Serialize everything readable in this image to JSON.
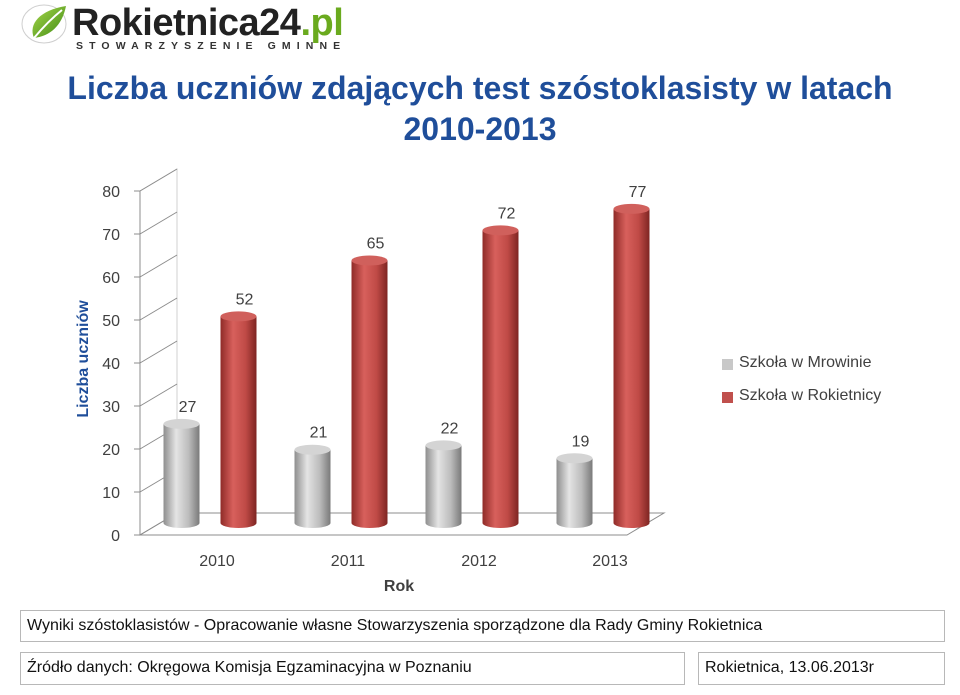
{
  "logo": {
    "name_main": "Rokietnica24",
    "name_suffix": ".pl",
    "subtitle": "STOWARZYSZENIE GMINNE"
  },
  "title": {
    "line1": "Liczba uczniów zdających test szóstoklasisty w latach",
    "line2": "2010-2013"
  },
  "chart_data": {
    "type": "bar",
    "categories": [
      "2010",
      "2011",
      "2012",
      "2013"
    ],
    "series": [
      {
        "name": "Szkoła w Mrowinie",
        "values": [
          27,
          21,
          22,
          19
        ],
        "color": "#bfbfbf"
      },
      {
        "name": "Szkoła w Rokietnicy",
        "values": [
          52,
          65,
          72,
          77
        ],
        "color": "#c0504d"
      }
    ],
    "yticks": [
      0,
      10,
      20,
      30,
      40,
      50,
      60,
      70,
      80
    ],
    "ylim": [
      0,
      80
    ],
    "xlabel": "Rok",
    "ylabel": "Liczba uczniów",
    "legend_position": "right",
    "grid": false,
    "style": "3d cylinders"
  },
  "footer": {
    "note": "Wyniki szóstoklasistów - Opracowanie własne Stowarzyszenia sporządzone dla Rady Gminy Rokietnica",
    "source": "Źródło danych: Okręgowa Komisja Egzaminacyjna w Poznaniu",
    "date": "Rokietnica, 13.06.2013r"
  }
}
